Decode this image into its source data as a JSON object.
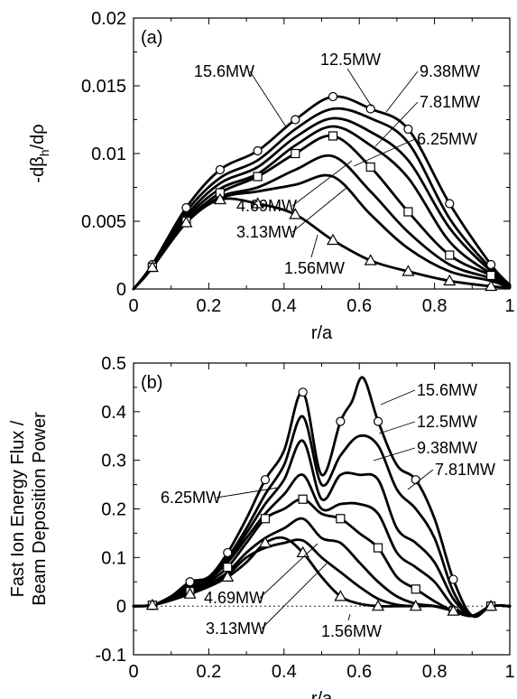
{
  "chart_data": [
    {
      "type": "line",
      "panel_label": "(a)",
      "xlabel": "r/a",
      "ylabel_main": "-dβ",
      "ylabel_sub": "h",
      "ylabel_tail": "/dρ",
      "xlim": [
        0,
        1
      ],
      "ylim": [
        0,
        0.02
      ],
      "x_ticks": [
        "0",
        "0.2",
        "0.4",
        "0.6",
        "0.8",
        "1"
      ],
      "y_ticks": [
        "0",
        "0.005",
        "0.01",
        "0.015",
        "0.02"
      ],
      "series": [
        {
          "name": "15.6MW",
          "x": [
            0,
            0.05,
            0.14,
            0.23,
            0.33,
            0.43,
            0.53,
            0.63,
            0.73,
            0.84,
            0.95,
            1.0
          ],
          "y": [
            0,
            0.0018,
            0.006,
            0.0088,
            0.0102,
            0.0125,
            0.0142,
            0.0133,
            0.0118,
            0.0063,
            0.0018,
            0.0003
          ],
          "marker": "circle"
        },
        {
          "name": "12.5MW",
          "x": [
            0,
            0.05,
            0.14,
            0.23,
            0.33,
            0.43,
            0.53,
            0.63,
            0.73,
            0.84,
            0.95,
            1.0
          ],
          "y": [
            0,
            0.0017,
            0.0057,
            0.0082,
            0.0095,
            0.0118,
            0.0133,
            0.0126,
            0.0108,
            0.0052,
            0.0015,
            0.0003
          ]
        },
        {
          "name": "9.38MW",
          "x": [
            0,
            0.05,
            0.14,
            0.23,
            0.33,
            0.43,
            0.53,
            0.63,
            0.73,
            0.84,
            0.95,
            1.0
          ],
          "y": [
            0,
            0.0016,
            0.0054,
            0.0078,
            0.009,
            0.0112,
            0.0126,
            0.0116,
            0.0095,
            0.0045,
            0.0013,
            0.0002
          ]
        },
        {
          "name": "7.81MW",
          "x": [
            0,
            0.05,
            0.14,
            0.23,
            0.33,
            0.43,
            0.53,
            0.63,
            0.73,
            0.84,
            0.95,
            1.0
          ],
          "y": [
            0,
            0.0016,
            0.0052,
            0.0074,
            0.0085,
            0.0106,
            0.012,
            0.0106,
            0.0082,
            0.0035,
            0.0011,
            0.0002
          ]
        },
        {
          "name": "6.25MW",
          "x": [
            0,
            0.05,
            0.14,
            0.23,
            0.33,
            0.43,
            0.53,
            0.63,
            0.73,
            0.84,
            0.95,
            1.0
          ],
          "y": [
            0,
            0.0016,
            0.005,
            0.0071,
            0.0083,
            0.01,
            0.0113,
            0.009,
            0.0057,
            0.0025,
            0.001,
            0.0002
          ],
          "marker": "square"
        },
        {
          "name": "4.69MW",
          "x": [
            0,
            0.05,
            0.14,
            0.23,
            0.33,
            0.43,
            0.53,
            0.63,
            0.73,
            0.84,
            0.95,
            1.0
          ],
          "y": [
            0,
            0.0016,
            0.0049,
            0.0068,
            0.0075,
            0.0088,
            0.0098,
            0.0072,
            0.0042,
            0.0018,
            0.0008,
            0.0002
          ]
        },
        {
          "name": "3.13MW",
          "x": [
            0,
            0.05,
            0.14,
            0.23,
            0.33,
            0.43,
            0.53,
            0.63,
            0.73,
            0.84,
            0.95,
            1.0
          ],
          "y": [
            0,
            0.0016,
            0.0049,
            0.0067,
            0.0072,
            0.0077,
            0.0083,
            0.0055,
            0.003,
            0.0013,
            0.0006,
            0.0001
          ]
        },
        {
          "name": "1.56MW",
          "x": [
            0,
            0.05,
            0.14,
            0.23,
            0.33,
            0.43,
            0.53,
            0.63,
            0.73,
            0.84,
            0.95,
            1.0
          ],
          "y": [
            0,
            0.0016,
            0.0049,
            0.0066,
            0.0063,
            0.0055,
            0.0036,
            0.0021,
            0.0013,
            0.0006,
            0.0002,
            0.0001
          ],
          "marker": "triangle"
        }
      ]
    },
    {
      "type": "line",
      "panel_label": "(b)",
      "xlabel": "r/a",
      "ylabel_line1": "Fast Ion Energy Flux /",
      "ylabel_line2": "Beam Deposition Power",
      "xlim": [
        0,
        1
      ],
      "ylim": [
        -0.1,
        0.5
      ],
      "x_ticks": [
        "0",
        "0.2",
        "0.4",
        "0.6",
        "0.8",
        "1"
      ],
      "y_ticks": [
        "-0.1",
        "0",
        "0.1",
        "0.2",
        "0.3",
        "0.4",
        "0.5"
      ],
      "series": [
        {
          "name": "15.6MW",
          "x": [
            0,
            0.05,
            0.1,
            0.15,
            0.2,
            0.25,
            0.3,
            0.35,
            0.4,
            0.45,
            0.5,
            0.55,
            0.58,
            0.61,
            0.65,
            0.7,
            0.75,
            0.8,
            0.85,
            0.9,
            0.95,
            1.0
          ],
          "y": [
            0,
            0.002,
            0.02,
            0.05,
            0.06,
            0.11,
            0.18,
            0.26,
            0.32,
            0.44,
            0.27,
            0.38,
            0.42,
            0.47,
            0.38,
            0.29,
            0.26,
            0.18,
            0.055,
            -0.02,
            0.0,
            0.0
          ],
          "marker": "circle"
        },
        {
          "name": "12.5MW",
          "x": [
            0,
            0.05,
            0.1,
            0.15,
            0.2,
            0.25,
            0.3,
            0.35,
            0.4,
            0.45,
            0.5,
            0.55,
            0.6,
            0.65,
            0.7,
            0.75,
            0.8,
            0.85,
            0.9,
            0.95,
            1.0
          ],
          "y": [
            0,
            0.002,
            0.02,
            0.045,
            0.06,
            0.1,
            0.16,
            0.23,
            0.29,
            0.39,
            0.25,
            0.31,
            0.35,
            0.33,
            0.24,
            0.2,
            0.14,
            0.03,
            -0.02,
            0.0,
            0.0
          ]
        },
        {
          "name": "9.38MW",
          "x": [
            0,
            0.05,
            0.1,
            0.15,
            0.2,
            0.25,
            0.3,
            0.35,
            0.4,
            0.45,
            0.5,
            0.55,
            0.6,
            0.65,
            0.7,
            0.75,
            0.8,
            0.85,
            0.9,
            0.95,
            1.0
          ],
          "y": [
            0,
            0.002,
            0.018,
            0.04,
            0.058,
            0.095,
            0.15,
            0.21,
            0.26,
            0.34,
            0.22,
            0.27,
            0.27,
            0.26,
            0.16,
            0.13,
            0.09,
            0.015,
            -0.02,
            0.0,
            0.0
          ]
        },
        {
          "name": "7.81MW",
          "x": [
            0,
            0.05,
            0.1,
            0.15,
            0.2,
            0.25,
            0.3,
            0.35,
            0.4,
            0.45,
            0.5,
            0.55,
            0.6,
            0.65,
            0.7,
            0.75,
            0.8,
            0.85,
            0.9,
            0.95,
            1.0
          ],
          "y": [
            0,
            0.002,
            0.016,
            0.035,
            0.055,
            0.09,
            0.14,
            0.19,
            0.23,
            0.27,
            0.2,
            0.21,
            0.21,
            0.19,
            0.11,
            0.08,
            0.05,
            0.0,
            -0.02,
            0.0,
            0.0
          ]
        },
        {
          "name": "6.25MW",
          "x": [
            0,
            0.05,
            0.1,
            0.15,
            0.2,
            0.25,
            0.3,
            0.35,
            0.4,
            0.45,
            0.5,
            0.55,
            0.6,
            0.65,
            0.7,
            0.75,
            0.8,
            0.85,
            0.9,
            0.95,
            1.0
          ],
          "y": [
            0,
            0.002,
            0.015,
            0.03,
            0.05,
            0.08,
            0.13,
            0.18,
            0.2,
            0.22,
            0.19,
            0.18,
            0.15,
            0.12,
            0.06,
            0.035,
            0.01,
            -0.01,
            -0.02,
            0.0,
            0.0
          ],
          "marker": "square"
        },
        {
          "name": "4.69MW",
          "x": [
            0,
            0.05,
            0.1,
            0.15,
            0.2,
            0.25,
            0.3,
            0.35,
            0.4,
            0.45,
            0.5,
            0.55,
            0.6,
            0.65,
            0.7,
            0.75,
            0.8,
            0.85,
            0.9,
            0.95,
            1.0
          ],
          "y": [
            0,
            0.002,
            0.014,
            0.028,
            0.045,
            0.07,
            0.11,
            0.14,
            0.16,
            0.18,
            0.14,
            0.13,
            0.09,
            0.05,
            0.02,
            0.005,
            0.0,
            -0.01,
            -0.02,
            0.0,
            0.0
          ]
        },
        {
          "name": "3.13MW",
          "x": [
            0,
            0.05,
            0.1,
            0.15,
            0.2,
            0.25,
            0.3,
            0.35,
            0.4,
            0.45,
            0.5,
            0.55,
            0.6,
            0.65,
            0.7,
            0.75,
            0.8,
            0.85,
            0.9,
            0.95,
            1.0
          ],
          "y": [
            0,
            0.002,
            0.013,
            0.027,
            0.042,
            0.065,
            0.1,
            0.12,
            0.13,
            0.135,
            0.1,
            0.07,
            0.04,
            0.015,
            0.003,
            0.0,
            0.0,
            -0.01,
            -0.02,
            0.0,
            0.0
          ]
        },
        {
          "name": "1.56MW",
          "x": [
            0,
            0.05,
            0.1,
            0.15,
            0.2,
            0.25,
            0.3,
            0.35,
            0.4,
            0.45,
            0.5,
            0.55,
            0.6,
            0.65,
            0.7,
            0.75,
            0.8,
            0.85,
            0.9,
            0.95,
            1.0
          ],
          "y": [
            0,
            0.002,
            0.012,
            0.025,
            0.04,
            0.06,
            0.09,
            0.13,
            0.14,
            0.11,
            0.06,
            0.02,
            0.005,
            0.0,
            0.0,
            0.0,
            0.0,
            -0.01,
            -0.02,
            0.0,
            0.0
          ],
          "marker": "triangle"
        }
      ]
    }
  ]
}
